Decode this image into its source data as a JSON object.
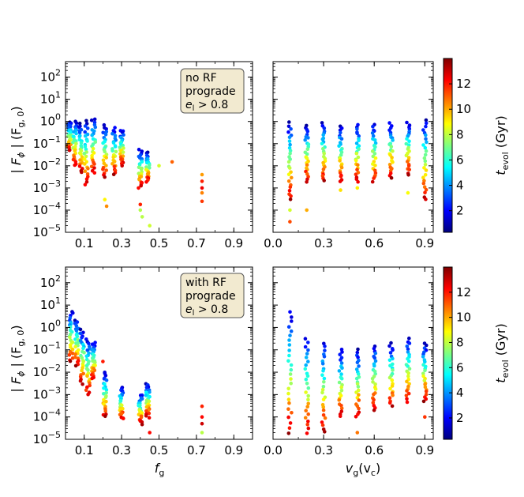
{
  "colorbar_label_main": "t",
  "colorbar_label_sub": "evol",
  "colorbar_label_unit": " (Gyr)",
  "colorbar_ticks": [
    2,
    4,
    6,
    8,
    10,
    12
  ],
  "colorbar_range": [
    0.3,
    14
  ],
  "colormap_stops": [
    "#00007f",
    "#0000ff",
    "#007fff",
    "#00ffff",
    "#7fff7f",
    "#ffff00",
    "#ff7f00",
    "#ff0000",
    "#7f0000"
  ],
  "ylabel_parts": {
    "pre": "|",
    "main": "F",
    "sub": "ϕ",
    "post": "|  (F",
    "unit_sub": "g, 0",
    "close": ")"
  },
  "xlabel_left": {
    "main": "f",
    "sub": "g"
  },
  "xlabel_right": {
    "main": "v",
    "sub": "g",
    "paren": "(v",
    "paren_sub": "c",
    "close": ")"
  },
  "y_ticks": [
    "10^-5",
    "10^-4",
    "10^-3",
    "10^-2",
    "10^-1",
    "10^0",
    "10^1",
    "10^2"
  ],
  "x_ticks_left": [
    "0.1",
    "0.3",
    "0.5",
    "0.7",
    "0.9"
  ],
  "x_ticks_right": [
    "0.0",
    "0.3",
    "0.6",
    "0.9"
  ],
  "annotations": {
    "top": {
      "line1": "no RF",
      "line2": "prograde",
      "line3_main": "e",
      "line3_sub": "l",
      "line3_rest": " > 0.8"
    },
    "bottom": {
      "line1": "with RF",
      "line2": "prograde",
      "line3_main": "e",
      "line3_sub": "l",
      "line3_rest": " > 0.8"
    }
  },
  "chart_data": {
    "type": "scatter",
    "log_y": true,
    "ylim": [
      1e-05,
      500
    ],
    "xlim_left": [
      0.0,
      1.0
    ],
    "xlim_right": [
      0.0,
      0.95
    ],
    "color_dimension": "t_evol (Gyr)",
    "panels": [
      {
        "id": "top-left",
        "x": "f_g",
        "groups": [
          {
            "x": 0.02,
            "ymin": 0.05,
            "ymax": 0.9
          },
          {
            "x": 0.05,
            "ymin": 0.01,
            "ymax": 1.0
          },
          {
            "x": 0.08,
            "ymin": 0.005,
            "ymax": 0.8
          },
          {
            "x": 0.11,
            "ymin": 0.0015,
            "ymax": 1.0
          },
          {
            "x": 0.15,
            "ymin": 0.005,
            "ymax": 1.3
          },
          {
            "x": 0.21,
            "ymin": 0.003,
            "ymax": 0.7
          },
          {
            "x": 0.26,
            "ymin": 0.004,
            "ymax": 0.5
          },
          {
            "x": 0.3,
            "ymin": 0.01,
            "ymax": 0.4
          },
          {
            "x": 0.4,
            "ymin": 0.001,
            "ymax": 0.05
          },
          {
            "x": 0.44,
            "ymin": 0.002,
            "ymax": 0.04
          }
        ],
        "points": [
          [
            0.22,
            0.00015
          ],
          [
            0.21,
            0.0003
          ],
          [
            0.4,
            0.00018
          ],
          [
            0.4,
            0.0001
          ],
          [
            0.41,
            5e-05
          ],
          [
            0.45,
            2e-05
          ],
          [
            0.5,
            0.01
          ],
          [
            0.57,
            0.015
          ],
          [
            0.73,
            0.004
          ],
          [
            0.73,
            0.002
          ],
          [
            0.73,
            0.001
          ],
          [
            0.73,
            0.0006
          ],
          [
            0.73,
            0.00025
          ]
        ]
      },
      {
        "id": "top-right",
        "x": "v_g (v_c)",
        "groups": [
          {
            "x": 0.1,
            "ymin": 0.0003,
            "ymax": 0.9
          },
          {
            "x": 0.2,
            "ymin": 0.002,
            "ymax": 0.7
          },
          {
            "x": 0.3,
            "ymin": 0.002,
            "ymax": 0.8
          },
          {
            "x": 0.4,
            "ymin": 0.002,
            "ymax": 0.6
          },
          {
            "x": 0.5,
            "ymin": 0.002,
            "ymax": 0.7
          },
          {
            "x": 0.6,
            "ymin": 0.002,
            "ymax": 0.7
          },
          {
            "x": 0.7,
            "ymin": 0.003,
            "ymax": 0.8
          },
          {
            "x": 0.8,
            "ymin": 0.004,
            "ymax": 0.9
          },
          {
            "x": 0.9,
            "ymin": 0.0003,
            "ymax": 1.2
          }
        ],
        "points": [
          [
            0.1,
            0.0001
          ],
          [
            0.1,
            3e-05
          ],
          [
            0.2,
            0.0001
          ],
          [
            0.4,
            0.0008
          ],
          [
            0.5,
            0.001
          ],
          [
            0.8,
            0.0006
          ]
        ]
      },
      {
        "id": "bottom-left",
        "x": "f_g",
        "groups": [
          {
            "x": 0.03,
            "ymin": 0.03,
            "ymax": 5.0
          },
          {
            "x": 0.06,
            "ymin": 0.02,
            "ymax": 2.0
          },
          {
            "x": 0.09,
            "ymin": 0.003,
            "ymax": 0.8
          },
          {
            "x": 0.12,
            "ymin": 0.001,
            "ymax": 0.3
          },
          {
            "x": 0.15,
            "ymin": 0.005,
            "ymax": 0.2
          },
          {
            "x": 0.21,
            "ymin": 0.0001,
            "ymax": 0.01
          },
          {
            "x": 0.3,
            "ymin": 8e-05,
            "ymax": 0.002
          },
          {
            "x": 0.4,
            "ymin": 5e-05,
            "ymax": 0.001
          },
          {
            "x": 0.44,
            "ymin": 0.0001,
            "ymax": 0.003
          }
        ],
        "points": [
          [
            0.73,
            0.0003
          ],
          [
            0.73,
            0.0001
          ],
          [
            0.73,
            5e-05
          ],
          [
            0.73,
            2e-05
          ],
          [
            0.45,
            2e-05
          ],
          [
            0.2,
            0.03
          ]
        ]
      },
      {
        "id": "bottom-right",
        "x": "v_g (v_c)",
        "groups": [
          {
            "x": 0.1,
            "ymin": 2e-05,
            "ymax": 5.0
          },
          {
            "x": 0.2,
            "ymin": 2e-05,
            "ymax": 0.3
          },
          {
            "x": 0.3,
            "ymin": 2e-05,
            "ymax": 0.2
          },
          {
            "x": 0.4,
            "ymin": 0.0001,
            "ymax": 0.1
          },
          {
            "x": 0.5,
            "ymin": 0.0001,
            "ymax": 0.1
          },
          {
            "x": 0.6,
            "ymin": 0.0002,
            "ymax": 0.15
          },
          {
            "x": 0.7,
            "ymin": 0.0003,
            "ymax": 0.2
          },
          {
            "x": 0.8,
            "ymin": 0.0005,
            "ymax": 0.3
          },
          {
            "x": 0.9,
            "ymin": 0.0005,
            "ymax": 0.2
          }
        ],
        "points": [
          [
            0.9,
            0.0001
          ],
          [
            0.5,
            2e-05
          ]
        ]
      }
    ]
  }
}
